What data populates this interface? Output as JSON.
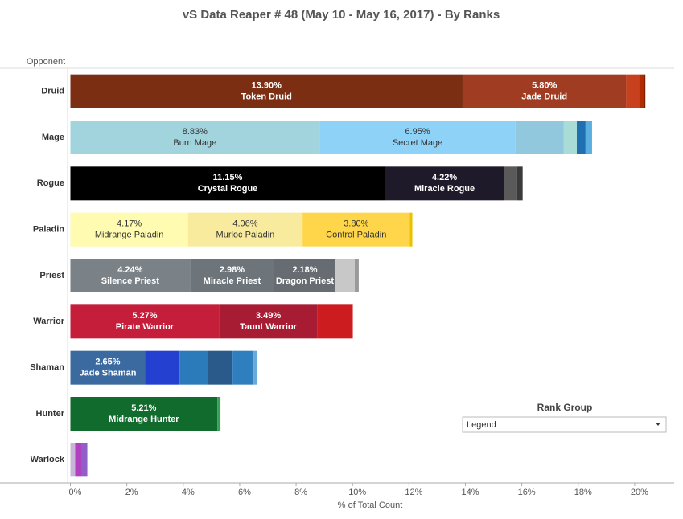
{
  "chart_data": {
    "type": "stacked_bar_horizontal",
    "title": "vS Data Reaper # 48 (May 10 - May 16, 2017) - By Ranks",
    "y_header": "Opponent",
    "x_label": "% of Total Count",
    "xlim": [
      -0.1,
      21.4
    ],
    "xticks": [
      {
        "value": 0,
        "label": "0%"
      },
      {
        "value": 2,
        "label": "2%"
      },
      {
        "value": 4,
        "label": "4%"
      },
      {
        "value": 6,
        "label": "6%"
      },
      {
        "value": 8,
        "label": "8%"
      },
      {
        "value": 10,
        "label": "10%"
      },
      {
        "value": 12,
        "label": "12%"
      },
      {
        "value": 14,
        "label": "14%"
      },
      {
        "value": 16,
        "label": "16%"
      },
      {
        "value": 18,
        "label": "18%"
      },
      {
        "value": 20,
        "label": "20%"
      }
    ],
    "legend_title": "Rank Group",
    "legend_dropdown": "Legend",
    "rows": [
      {
        "class": "Druid",
        "segments": [
          {
            "name": "Token Druid",
            "value": 13.9,
            "value_label": "13.90%",
            "color": "#7b2e12"
          },
          {
            "name": "Jade Druid",
            "value": 5.8,
            "value_label": "5.80%",
            "color": "#a03c22"
          },
          {
            "value": 0.45,
            "color": "#c8401e"
          },
          {
            "value": 0.17,
            "color": "#b22a00"
          },
          {
            "value": 0.06,
            "color": "#7a2000"
          }
        ]
      },
      {
        "class": "Mage",
        "segments": [
          {
            "name": "Burn Mage",
            "value": 8.83,
            "value_label": "8.83%",
            "color": "#a2d4de"
          },
          {
            "name": "Secret Mage",
            "value": 6.95,
            "value_label": "6.95%",
            "color": "#8fd2f7"
          },
          {
            "value": 1.71,
            "color": "#92c8dd"
          },
          {
            "value": 0.46,
            "color": "#a9dcd6"
          },
          {
            "value": 0.31,
            "color": "#1f6fb2"
          },
          {
            "value": 0.23,
            "color": "#5aaee0"
          }
        ]
      },
      {
        "class": "Rogue",
        "segments": [
          {
            "name": "Crystal Rogue",
            "value": 11.15,
            "value_label": "11.15%",
            "color": "#000000"
          },
          {
            "name": "Miracle Rogue",
            "value": 4.22,
            "value_label": "4.22%",
            "color": "#1f1a2a"
          },
          {
            "value": 0.46,
            "color": "#5a5a5a"
          },
          {
            "value": 0.2,
            "color": "#3a3a3a"
          }
        ]
      },
      {
        "class": "Paladin",
        "segments": [
          {
            "name": "Midrange Paladin",
            "value": 4.17,
            "value_label": "4.17%",
            "color": "#fffbb0"
          },
          {
            "name": "Murloc Paladin",
            "value": 4.06,
            "value_label": "4.06%",
            "color": "#f8eb9e"
          },
          {
            "name": "Control Paladin",
            "value": 3.8,
            "value_label": "3.80%",
            "color": "#ffd64a"
          },
          {
            "value": 0.09,
            "color": "#e8c200"
          }
        ]
      },
      {
        "class": "Priest",
        "segments": [
          {
            "name": "Silence Priest",
            "value": 4.24,
            "value_label": "4.24%",
            "color": "#7b8287"
          },
          {
            "name": "Miracle Priest",
            "value": 2.98,
            "value_label": "2.98%",
            "color": "#6e757a"
          },
          {
            "name": "Dragon Priest",
            "value": 2.18,
            "value_label": "2.18%",
            "color": "#666c71"
          },
          {
            "value": 0.68,
            "color": "#c8c8c8"
          },
          {
            "value": 0.14,
            "color": "#9a9a9a"
          }
        ]
      },
      {
        "class": "Warrior",
        "segments": [
          {
            "name": "Pirate Warrior",
            "value": 5.27,
            "value_label": "5.27%",
            "color": "#c41e3a"
          },
          {
            "name": "Taunt Warrior",
            "value": 3.49,
            "value_label": "3.49%",
            "color": "#a81c33"
          },
          {
            "value": 1.25,
            "color": "#cc1c20"
          }
        ]
      },
      {
        "class": "Shaman",
        "segments": [
          {
            "name": "Jade Shaman",
            "value": 2.65,
            "value_label": "2.65%",
            "color": "#3a6aa0"
          },
          {
            "value": 1.22,
            "color": "#2340d0"
          },
          {
            "value": 1.0,
            "color": "#2b7bba"
          },
          {
            "value": 0.88,
            "color": "#2a5a8a"
          },
          {
            "value": 0.74,
            "color": "#2f7fbf"
          },
          {
            "value": 0.14,
            "color": "#6aa8d8"
          }
        ]
      },
      {
        "class": "Hunter",
        "segments": [
          {
            "name": "Midrange Hunter",
            "value": 5.21,
            "value_label": "5.21%",
            "color": "#116b2c"
          },
          {
            "value": 0.11,
            "color": "#3aa055"
          }
        ]
      },
      {
        "class": "Warlock",
        "segments": [
          {
            "value": 0.17,
            "color": "#c8b4d8"
          },
          {
            "value": 0.23,
            "color": "#b040c0"
          },
          {
            "value": 0.2,
            "color": "#9060c8"
          }
        ]
      }
    ]
  }
}
